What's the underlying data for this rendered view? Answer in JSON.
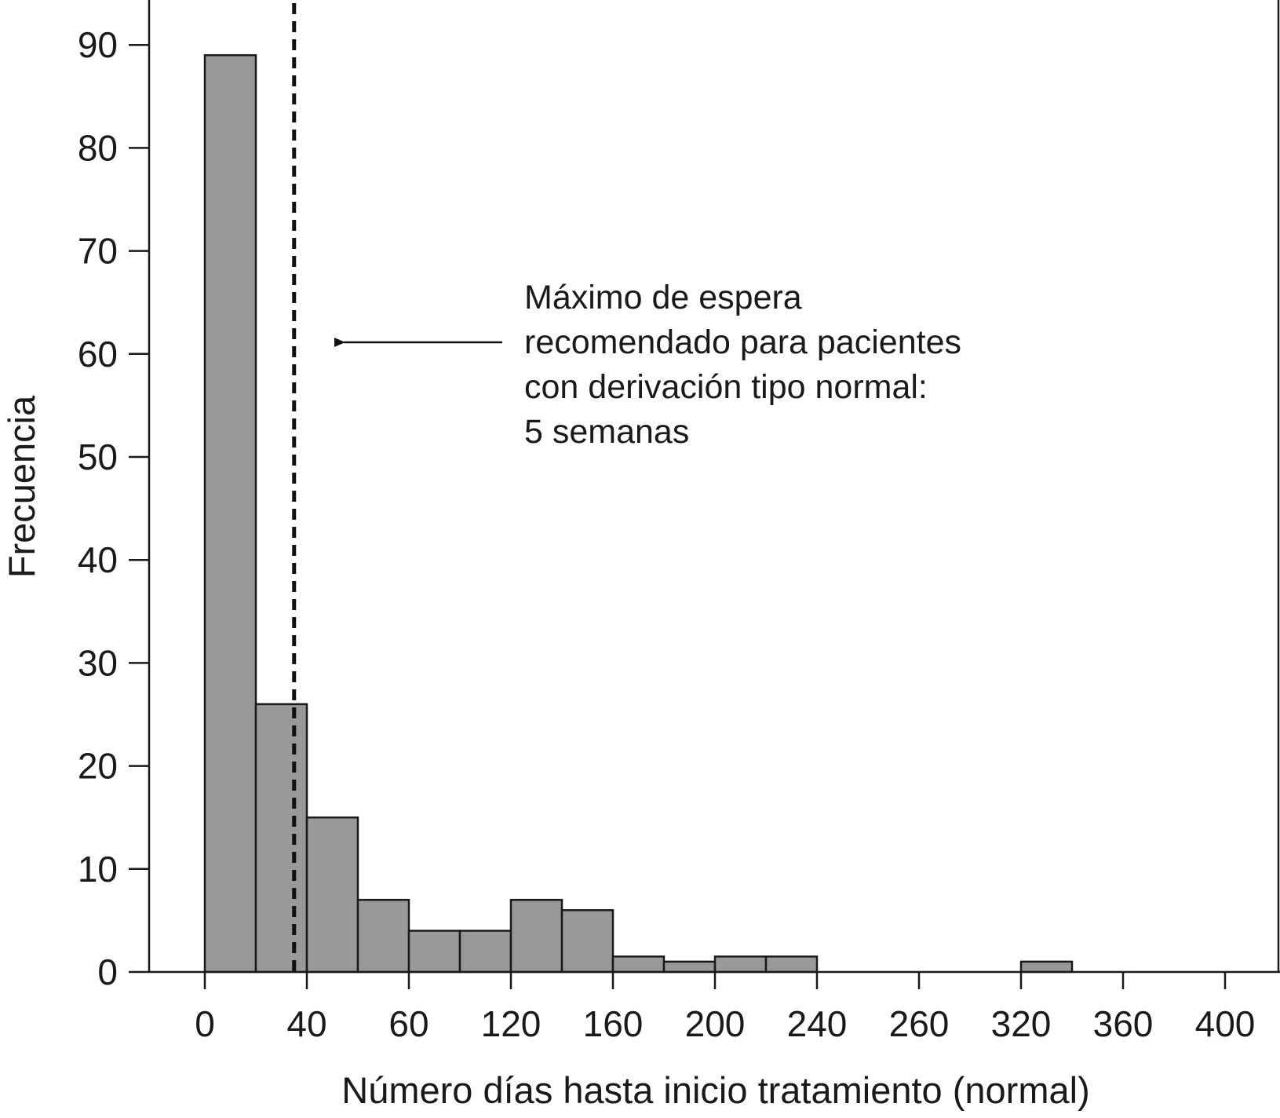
{
  "chart_data": {
    "type": "bar",
    "title": "",
    "xlabel": "Número días hasta inicio tratamiento (normal)",
    "ylabel": "Frecuencia",
    "ylim": [
      0,
      90
    ],
    "y_ticks": [
      "0",
      "10",
      "20",
      "30",
      "40",
      "50",
      "60",
      "70",
      "80",
      "90"
    ],
    "x_ticks": [
      "0",
      "40",
      "60",
      "120",
      "160",
      "200",
      "240",
      "260",
      "320",
      "360",
      "400"
    ],
    "bar_color": "#999999",
    "bars": [
      {
        "bin_start": 0,
        "bin_end": 20,
        "value": 89
      },
      {
        "bin_start": 20,
        "bin_end": 40,
        "value": 26
      },
      {
        "bin_start": 40,
        "bin_end": 60,
        "value": 15
      },
      {
        "bin_start": 60,
        "bin_end": 80,
        "value": 7
      },
      {
        "bin_start": 80,
        "bin_end": 100,
        "value": 4
      },
      {
        "bin_start": 100,
        "bin_end": 120,
        "value": 4
      },
      {
        "bin_start": 120,
        "bin_end": 140,
        "value": 7
      },
      {
        "bin_start": 140,
        "bin_end": 160,
        "value": 6
      },
      {
        "bin_start": 160,
        "bin_end": 180,
        "value": 1.5
      },
      {
        "bin_start": 180,
        "bin_end": 200,
        "value": 1
      },
      {
        "bin_start": 200,
        "bin_end": 220,
        "value": 1.5
      },
      {
        "bin_start": 220,
        "bin_end": 240,
        "value": 1.5
      },
      {
        "bin_start": 320,
        "bin_end": 340,
        "value": 1
      }
    ],
    "reference_line": {
      "x": 35,
      "style": "dashed"
    },
    "annotation": {
      "lines": [
        "Máximo de espera",
        "recomendado para pacientes",
        "con derivación tipo normal:",
        "5 semanas"
      ],
      "arrow": "left"
    },
    "grid": false,
    "legend": "none"
  }
}
